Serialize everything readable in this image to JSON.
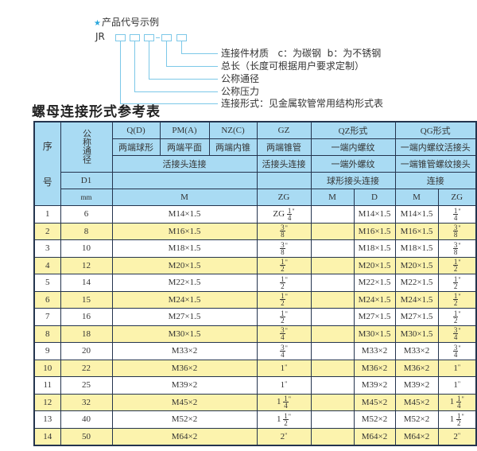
{
  "example": {
    "title": "产品代号示例",
    "star_icon": "star-icon",
    "prefix": "JR",
    "separator": "-",
    "labels": [
      "连接件材质   c：为碳钢  b：为不锈钢",
      "总长（长度可根据用户要求定制）",
      "公称通径",
      "公称压力",
      "连接形式：见金属软管常用结构形式表"
    ]
  },
  "table_title": "螺母连接形式参考表",
  "colors": {
    "header_bg": "#a9dbf3",
    "stripe": "#fcf3ad",
    "border": "#24344e",
    "accent": "#2aa7dc"
  },
  "header": {
    "seq": "序\n\n号",
    "seq_top": "序",
    "seq_bottom": "号",
    "dn": "公称通径",
    "d1": "D1",
    "mm": "mm",
    "types": {
      "q": "Q(D)",
      "pm": "PM(A)",
      "nz": "NZ(C)",
      "gz": "GZ",
      "qz": "QZ形式",
      "qg": "QG形式"
    },
    "row2": {
      "q": "两端球形",
      "pm": "两端平面",
      "nz": "两端内锥",
      "gz": "两端锥管",
      "qz": "一端内螺纹",
      "qg": "一端内螺纹活接头"
    },
    "row3": {
      "qpmnz": "活接头连接",
      "gz": "活接头连接",
      "qz": "一端外螺纹",
      "qg": "一端锥管螺纹接头"
    },
    "row4": {
      "qz": "球形接头连接",
      "qg": "连接"
    },
    "row5": {
      "m": "M",
      "zg": "ZG",
      "qz_m": "M",
      "qz_d": "D",
      "qg_m": "M",
      "qg_zg": "ZG"
    }
  },
  "rows": [
    {
      "no": "1",
      "dn": "6",
      "m": "M14×1.5",
      "zg": {
        "pre": "ZG",
        "num": "1",
        "den": "4"
      },
      "qz_m": "",
      "qz_d": "M14×1.5",
      "qg_m": "M14×1.5",
      "qg_zg": {
        "pre": "",
        "num": "1",
        "den": "4"
      }
    },
    {
      "no": "2",
      "dn": "8",
      "m": "M16×1.5",
      "zg": {
        "pre": "",
        "num": "3",
        "den": "8"
      },
      "qz_m": "",
      "qz_d": "M16×1.5",
      "qg_m": "M16×1.5",
      "qg_zg": {
        "pre": "",
        "num": "3",
        "den": "8"
      }
    },
    {
      "no": "3",
      "dn": "10",
      "m": "M18×1.5",
      "zg": {
        "pre": "",
        "num": "3",
        "den": "8"
      },
      "qz_m": "",
      "qz_d": "M18×1.5",
      "qg_m": "M18×1.5",
      "qg_zg": {
        "pre": "",
        "num": "3",
        "den": "8"
      }
    },
    {
      "no": "4",
      "dn": "12",
      "m": "M20×1.5",
      "zg": {
        "pre": "",
        "num": "1",
        "den": "2"
      },
      "qz_m": "",
      "qz_d": "M20×1.5",
      "qg_m": "M20×1.5",
      "qg_zg": {
        "pre": "",
        "num": "1",
        "den": "2"
      }
    },
    {
      "no": "5",
      "dn": "14",
      "m": "M22×1.5",
      "zg": {
        "pre": "",
        "num": "1",
        "den": "2"
      },
      "qz_m": "",
      "qz_d": "M22×1.5",
      "qg_m": "M22×1.5",
      "qg_zg": {
        "pre": "",
        "num": "1",
        "den": "2"
      }
    },
    {
      "no": "6",
      "dn": "15",
      "m": "M24×1.5",
      "zg": {
        "pre": "",
        "num": "1",
        "den": "2"
      },
      "qz_m": "",
      "qz_d": "M24×1.5",
      "qg_m": "M24×1.5",
      "qg_zg": {
        "pre": "",
        "num": "1",
        "den": "2"
      }
    },
    {
      "no": "7",
      "dn": "16",
      "m": "M27×1.5",
      "zg": {
        "pre": "",
        "num": "1",
        "den": "2"
      },
      "qz_m": "",
      "qz_d": "M27×1.5",
      "qg_m": "M27×1.5",
      "qg_zg": {
        "pre": "",
        "num": "1",
        "den": "2"
      }
    },
    {
      "no": "8",
      "dn": "18",
      "m": "M30×1.5",
      "zg": {
        "pre": "",
        "num": "3",
        "den": "4"
      },
      "qz_m": "",
      "qz_d": "M30×1.5",
      "qg_m": "M30×1.5",
      "qg_zg": {
        "pre": "",
        "num": "3",
        "den": "4"
      }
    },
    {
      "no": "9",
      "dn": "20",
      "m": "M33×2",
      "zg": {
        "pre": "",
        "num": "3",
        "den": "4"
      },
      "qz_m": "",
      "qz_d": "M33×2",
      "qg_m": "M33×2",
      "qg_zg": {
        "pre": "",
        "num": "3",
        "den": "4"
      }
    },
    {
      "no": "10",
      "dn": "22",
      "m": "M36×2",
      "zg": {
        "pre": "1",
        "num": "",
        "den": ""
      },
      "qz_m": "",
      "qz_d": "M36×2",
      "qg_m": "M36×2",
      "qg_zg": {
        "pre": "1",
        "num": "",
        "den": ""
      }
    },
    {
      "no": "11",
      "dn": "25",
      "m": "M39×2",
      "zg": {
        "pre": "1",
        "num": "",
        "den": ""
      },
      "qz_m": "",
      "qz_d": "M39×2",
      "qg_m": "M39×2",
      "qg_zg": {
        "pre": "1",
        "num": "",
        "den": ""
      }
    },
    {
      "no": "12",
      "dn": "32",
      "m": "M45×2",
      "zg": {
        "pre": "1",
        "num": "1",
        "den": "4"
      },
      "qz_m": "",
      "qz_d": "M45×2",
      "qg_m": "M45×2",
      "qg_zg": {
        "pre": "1",
        "num": "1",
        "den": "4"
      }
    },
    {
      "no": "13",
      "dn": "40",
      "m": "M52×2",
      "zg": {
        "pre": "1",
        "num": "1",
        "den": "2"
      },
      "qz_m": "",
      "qz_d": "M52×2",
      "qg_m": "M52×2",
      "qg_zg": {
        "pre": "1",
        "num": "1",
        "den": "2"
      }
    },
    {
      "no": "14",
      "dn": "50",
      "m": "M64×2",
      "zg": {
        "pre": "2",
        "num": "",
        "den": ""
      },
      "qz_m": "",
      "qz_d": "M64×2",
      "qg_m": "M64×2",
      "qg_zg": {
        "pre": "2",
        "num": "",
        "den": ""
      }
    }
  ],
  "inch_mark": "\""
}
